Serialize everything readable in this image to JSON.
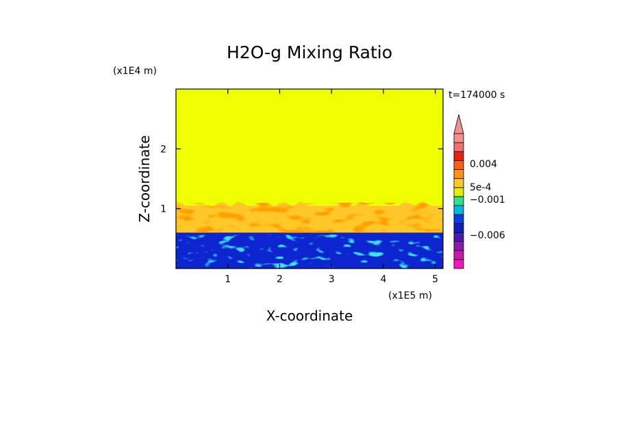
{
  "chart_data": {
    "type": "heatmap",
    "title": "H2O-g Mixing Ratio",
    "xlabel": "X-coordinate",
    "ylabel": "Z-coordinate",
    "x_scale_label": "(x1E5 m)",
    "y_scale_label": "(x1E4 m)",
    "time_label": "t=174000 s",
    "xlim": [
      0,
      5.15
    ],
    "ylim": [
      0,
      3.0
    ],
    "x_ticks": [
      "1",
      "2",
      "3",
      "4",
      "5"
    ],
    "y_ticks": [
      "1",
      "2"
    ],
    "x_tick_values": [
      1,
      2,
      3,
      4,
      5
    ],
    "y_tick_values": [
      1,
      2
    ],
    "colorbar": {
      "colors": [
        "#f018b8",
        "#c818a8",
        "#8c1aa8",
        "#4a1aa8",
        "#1020c0",
        "#0a40e0",
        "#00b8e0",
        "#30e090",
        "#e0f000",
        "#ffc828",
        "#ff9018",
        "#ff6010",
        "#e82010",
        "#f07070",
        "#f49090"
      ],
      "labels": [
        "0.004",
        "5e-4",
        "−0.001",
        "−0.006"
      ],
      "label_values": [
        0.004,
        0.0005,
        -0.001,
        -0.006
      ],
      "extend": "max"
    },
    "field_regions": [
      {
        "z_range": [
          1.05,
          3.0
        ],
        "value": 0,
        "color": "#f0ff00"
      },
      {
        "z_range": [
          0.6,
          1.05
        ],
        "value": 0.0005,
        "color": "#ffc828"
      },
      {
        "z_range": [
          0.0,
          0.6
        ],
        "value": -0.003,
        "color": "#1020c0"
      }
    ]
  }
}
